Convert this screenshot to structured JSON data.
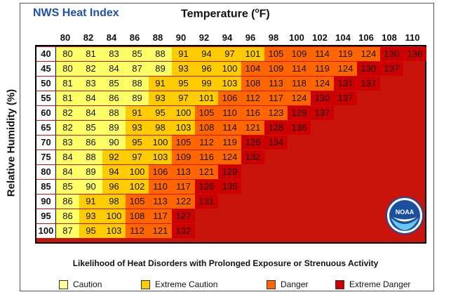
{
  "header": {
    "title": "NWS Heat Index",
    "temperature_title": "Temperature (",
    "temperature_unit": "o",
    "temperature_title_end": "F)",
    "humidity_title": "Relative Humidity (%)"
  },
  "chart_data": {
    "type": "table",
    "title": "NWS Heat Index",
    "xlabel": "Temperature (°F)",
    "ylabel": "Relative Humidity (%)",
    "x": [
      80,
      82,
      84,
      86,
      88,
      90,
      92,
      94,
      96,
      98,
      100,
      102,
      104,
      106,
      108,
      110
    ],
    "y": [
      40,
      45,
      50,
      55,
      60,
      65,
      70,
      75,
      80,
      85,
      90,
      95,
      100
    ],
    "values": [
      [
        80,
        81,
        83,
        85,
        88,
        91,
        94,
        97,
        101,
        105,
        109,
        114,
        119,
        124,
        130,
        136
      ],
      [
        80,
        82,
        84,
        87,
        89,
        93,
        96,
        100,
        104,
        109,
        114,
        119,
        124,
        130,
        137,
        null
      ],
      [
        81,
        83,
        85,
        88,
        91,
        95,
        99,
        103,
        108,
        113,
        118,
        124,
        131,
        137,
        null,
        null
      ],
      [
        81,
        84,
        86,
        89,
        93,
        97,
        101,
        106,
        112,
        117,
        124,
        130,
        137,
        null,
        null,
        null
      ],
      [
        82,
        84,
        88,
        91,
        95,
        100,
        105,
        110,
        116,
        123,
        129,
        137,
        null,
        null,
        null,
        null
      ],
      [
        82,
        85,
        89,
        93,
        98,
        103,
        108,
        114,
        121,
        128,
        136,
        null,
        null,
        null,
        null,
        null
      ],
      [
        83,
        86,
        90,
        95,
        100,
        105,
        112,
        119,
        126,
        134,
        null,
        null,
        null,
        null,
        null,
        null
      ],
      [
        84,
        88,
        92,
        97,
        103,
        109,
        116,
        124,
        132,
        null,
        null,
        null,
        null,
        null,
        null,
        null
      ],
      [
        84,
        89,
        94,
        100,
        106,
        113,
        121,
        129,
        null,
        null,
        null,
        null,
        null,
        null,
        null,
        null
      ],
      [
        85,
        90,
        96,
        102,
        110,
        117,
        126,
        135,
        null,
        null,
        null,
        null,
        null,
        null,
        null,
        null
      ],
      [
        86,
        91,
        98,
        105,
        113,
        122,
        131,
        null,
        null,
        null,
        null,
        null,
        null,
        null,
        null,
        null
      ],
      [
        86,
        93,
        100,
        108,
        117,
        127,
        null,
        null,
        null,
        null,
        null,
        null,
        null,
        null,
        null,
        null
      ],
      [
        87,
        95,
        103,
        112,
        121,
        132,
        null,
        null,
        null,
        null,
        null,
        null,
        null,
        null,
        null,
        null
      ]
    ],
    "categories_levels": [
      {
        "key": "caution",
        "label": "Caution",
        "color": "#ffff66",
        "max": 90
      },
      {
        "key": "extreme_caution",
        "label": "Extreme Caution",
        "color": "#ffcc00",
        "max": 103
      },
      {
        "key": "danger",
        "label": "Danger",
        "color": "#ff6600",
        "max": 124
      },
      {
        "key": "extreme_danger",
        "label": "Extreme Danger",
        "color": "#cc0000",
        "max": 999
      }
    ],
    "legend_position": "bottom"
  },
  "caption": "Likelihood of Heat Disorders with Prolonged Exposure or Strenuous Activity",
  "legend": {
    "caution": "Caution",
    "extreme_caution": "Extreme Caution",
    "danger": "Danger",
    "extreme_danger": "Extreme Danger"
  },
  "logo": {
    "text": "NOAA",
    "icon": "noaa-logo-icon",
    "colors": [
      "#1a4fa0",
      "#ffffff",
      "#6cc7f0"
    ]
  }
}
